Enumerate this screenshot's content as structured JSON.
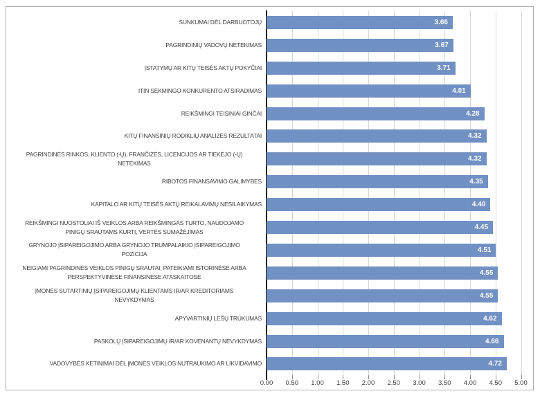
{
  "figure": {
    "background": "#FFFFFF",
    "border_color": "#ADADAD"
  },
  "chart_data": {
    "type": "bar",
    "orientation": "horizontal",
    "title": "",
    "xlabel": "",
    "ylabel": "",
    "xlim": [
      0,
      5
    ],
    "x_tick_step": 0.5,
    "x_ticks": [
      "0.00",
      "0.50",
      "1.00",
      "1.50",
      "2.00",
      "2.50",
      "3.00",
      "3.50",
      "4.00",
      "4.50",
      "5.00"
    ],
    "grid": true,
    "legend": false,
    "bar_color": "#7190C4",
    "value_label_color": "#FFFFFF",
    "axis_text_color": "#404040",
    "gridline_color": "#D6D6D6",
    "axis_line_color": "#1F1F1F",
    "tick_color": "#8C8C8C",
    "categories": [
      [
        "SUNKUMAI DĖL DARBUOTOJŲ"
      ],
      [
        "PAGRINDINIŲ VADOVŲ NETEKIMAS"
      ],
      [
        "ĮSTATYMŲ AR KITŲ TEISĖS AKTŲ POKYČIAI"
      ],
      [
        "ITIN SĖKMINGO KONKURENTO ATSIRADIMAS"
      ],
      [
        "REIKŠMINGI TEISINIAI GINČAI"
      ],
      [
        "KITŲ FINANSINIŲ RODIKLIŲ ANALIZĖS REZULTATAI"
      ],
      [
        "PAGRINDINĖS RINKOS, KLIENTO (-Ų), FRANČIZĖS, LICENCIJOS AR TIEKĖJO (-Ų)",
        "NETEKIMAS"
      ],
      [
        "RIBOTOS FINANSAVIMO GALIMYBĖS"
      ],
      [
        "KAPITALO AR KITŲ TEISĖS AKTŲ REIKALAVIMŲ NESILAIKYMAS"
      ],
      [
        "REIKŠMINGI NUOSTOLIAI IŠ VEIKLOS ARBA REIKŠMINGAS TURTO, NAUDOJAMO",
        "PINIGŲ SRAUTAMS KURTI, VERTĖS SUMAŽĖJIMAS"
      ],
      [
        "GRYNOJO ĮSIPAREIGOJIMO ARBA GRYNOJO TRUMPALAIKIO ĮSIPAREIGOJIMO",
        "POZICIJA"
      ],
      [
        "NEIGIAMI PAGRINDINĖS VEIKLOS PINIGŲ SRAUTAI, PATEIKIAMI ISTORINĖSE ARBA",
        "PERSPEKTYVINĖSE FINANSINĖSE ATASKAITOSE"
      ],
      [
        "ĮMONĖS SUTARTINIŲ ĮSIPAREIGOJIMŲ KLIENTAMS IR/AR KREDITORIAMS",
        "NEVYKDYMAS"
      ],
      [
        "APYVARTINIŲ LĖŠŲ TRŪKUMAS"
      ],
      [
        "PASKOLŲ ĮSIPAREIGOJIMŲ IR/AR KOVENANTŲ NEVYKDYMAS"
      ],
      [
        "VADOVYBĖS KETINIMAI DĖL ĮMONĖS VEIKLOS NUTRAUKIMO AR LIKVIDAVIMO"
      ]
    ],
    "values": [
      3.66,
      3.67,
      3.71,
      4.01,
      4.28,
      4.32,
      4.32,
      4.35,
      4.4,
      4.45,
      4.51,
      4.55,
      4.55,
      4.62,
      4.66,
      4.72
    ],
    "data_labels": [
      "3.66",
      "3.67",
      "3.71",
      "4.01",
      "4.28",
      "4.32",
      "4.32",
      "4.35",
      "4.40",
      "4.45",
      "4.51",
      "4.55",
      "4.55",
      "4.62",
      "4.66",
      "4.72"
    ]
  }
}
